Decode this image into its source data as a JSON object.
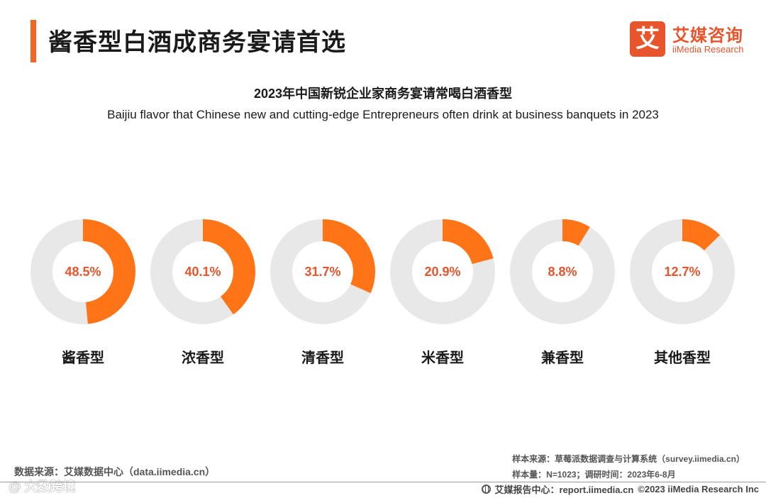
{
  "header": {
    "title": "酱香型白酒成商务宴请首选",
    "accent_color": "#f26522"
  },
  "logo": {
    "mark": "艾",
    "cn": "艾媒咨询",
    "en": "iiMedia Research",
    "color": "#e8542b"
  },
  "chart_data": {
    "type": "pie",
    "variant": "donut",
    "title": "2023年中国新锐企业家商务宴请常喝白酒香型",
    "subtitle": "Baijiu flavor that Chinese new and cutting-edge Entrepreneurs often drink at business banquets in 2023",
    "unit": "%",
    "categories": [
      "酱香型",
      "浓香型",
      "清香型",
      "米香型",
      "兼香型",
      "其他香型"
    ],
    "values": [
      48.5,
      40.1,
      31.7,
      20.9,
      8.8,
      12.7
    ],
    "labels": [
      "48.5%",
      "40.1%",
      "31.7%",
      "20.9%",
      "8.8%",
      "12.7%"
    ],
    "colors": {
      "value": "#ff7417",
      "remainder": "#e8e8e8",
      "label": "#e8542b"
    }
  },
  "sources": {
    "data_source": "数据来源：艾媒数据中心（data.iimedia.cn）",
    "sample_source": "样本来源：草莓派数据调查与计算系统（survey.iimedia.cn）",
    "sample_info": "样本量：N=1023；调研时间：2023年6-8月"
  },
  "watermark": "@ 大数跨境",
  "footer": {
    "report": "艾媒报告中心：report.iimedia.cn",
    "copyright": "©2023 iiMedia Research Inc",
    "icon": "globe-icon"
  }
}
